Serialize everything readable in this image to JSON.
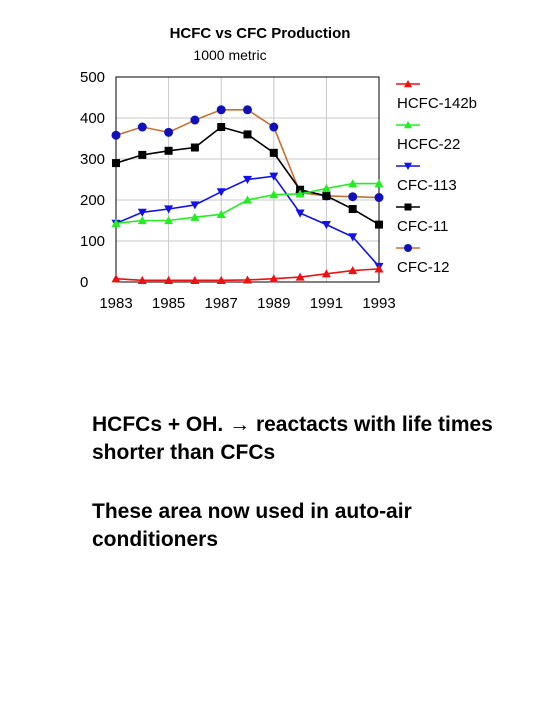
{
  "chart_data": {
    "type": "line",
    "title": "HCFC vs CFC Production",
    "subtitle": "1000 metric",
    "x": [
      1983,
      1984,
      1985,
      1986,
      1987,
      1988,
      1989,
      1990,
      1991,
      1992,
      1993
    ],
    "x_tick_labels": [
      "1983",
      "1985",
      "1987",
      "1989",
      "1991",
      "1993"
    ],
    "x_ticks": [
      1983,
      1985,
      1987,
      1989,
      1991,
      1993
    ],
    "y_ticks": [
      0,
      100,
      200,
      300,
      400,
      500
    ],
    "y_tick_labels": [
      "0",
      "100",
      "200",
      "300",
      "400",
      "500"
    ],
    "xlim": [
      1983,
      1993
    ],
    "ylim": [
      0,
      500
    ],
    "grid": true,
    "legend_placement": "right",
    "series": [
      {
        "name": "HCFC-142b",
        "color": "#ee1111",
        "marker": "triangle-up",
        "values": [
          8,
          4,
          4,
          4,
          4,
          5,
          8,
          12,
          20,
          28,
          32
        ]
      },
      {
        "name": "HCFC-22",
        "color": "#22ee22",
        "marker": "triangle-up",
        "values": [
          143,
          150,
          150,
          158,
          165,
          200,
          213,
          215,
          228,
          240,
          240
        ]
      },
      {
        "name": "CFC-113",
        "color": "#1111ee",
        "marker": "triangle-down",
        "values": [
          143,
          170,
          178,
          188,
          220,
          250,
          258,
          168,
          140,
          110,
          38
        ]
      },
      {
        "name": "CFC-11",
        "color": "#000000",
        "marker": "square",
        "values": [
          290,
          310,
          320,
          328,
          378,
          360,
          315,
          225,
          210,
          178,
          140
        ]
      },
      {
        "name": "CFC-12",
        "color": "#c7702f",
        "marker": "circle",
        "marker_color": "#1111bb",
        "values": [
          358,
          378,
          365,
          395,
          420,
          420,
          378,
          218,
          210,
          208,
          206
        ]
      }
    ]
  },
  "text": {
    "caption_1": "HCFCs   + OH. → reactacts with life times shorter than CFCs",
    "caption_2": "These area now used in auto-air conditioners"
  }
}
